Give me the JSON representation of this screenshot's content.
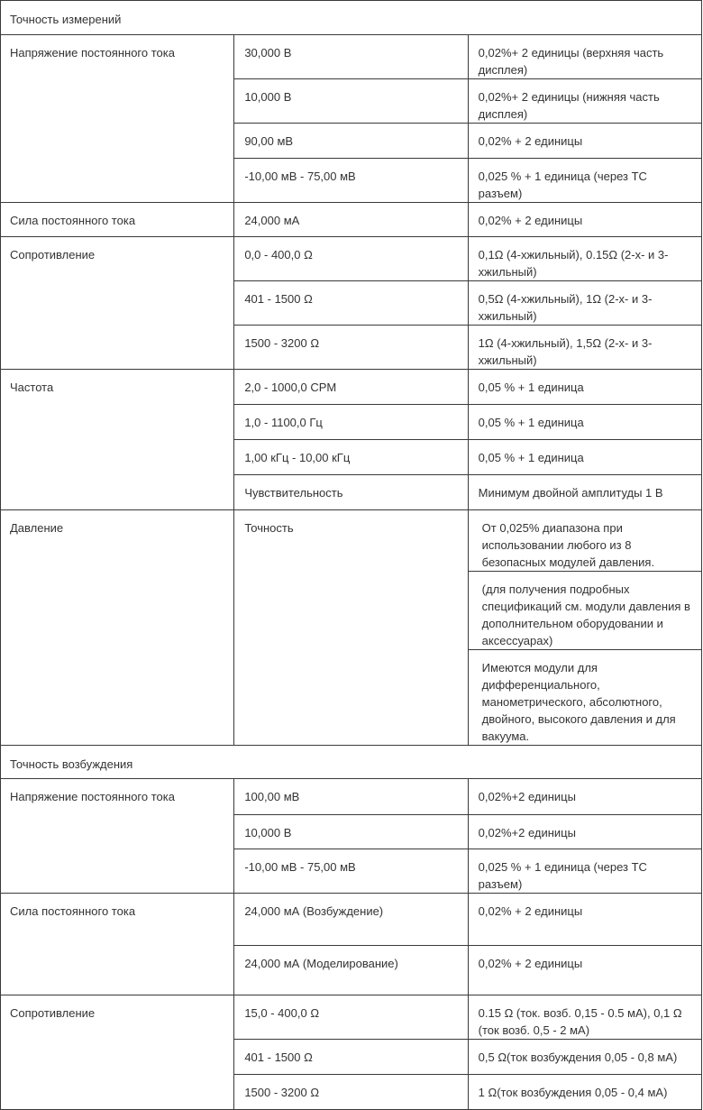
{
  "sections": [
    {
      "title": "Точность измерений",
      "groups": [
        {
          "param": "Напряжение постоянного тока",
          "rows": [
            {
              "range": "30,000 В",
              "accuracy": "0,02%+ 2 единицы (верхняя часть дисплея)"
            },
            {
              "range": "10,000 В",
              "accuracy": "0,02%+ 2 единицы (нижняя часть дисплея)"
            },
            {
              "range": "90,00 мВ",
              "accuracy": "0,02% + 2 единицы"
            },
            {
              "range": "-10,00 мВ - 75,00 мВ",
              "accuracy": "0,025 % + 1 единица (через ТС разъем)"
            }
          ]
        },
        {
          "param": "Сила постоянного тока",
          "rows": [
            {
              "range": "24,000 мА",
              "accuracy": "0,02% + 2 единицы"
            }
          ]
        },
        {
          "param": "Сопротивление",
          "rows": [
            {
              "range": "0,0 - 400,0 Ω",
              "accuracy": "0,1Ω (4-хжильный), 0.15Ω (2-х- и 3-хжильный)"
            },
            {
              "range": "401 - 1500 Ω",
              "accuracy": "0,5Ω (4-хжильный), 1Ω (2-х- и 3-хжильный)"
            },
            {
              "range": "1500 - 3200 Ω",
              "accuracy": "1Ω (4-хжильный), 1,5Ω (2-х- и 3-хжильный)"
            }
          ]
        },
        {
          "param": "Частота",
          "rows": [
            {
              "range": "2,0 - 1000,0 CPM",
              "accuracy": "0,05 % + 1 единица"
            },
            {
              "range": "1,0 - 1100,0 Гц",
              "accuracy": "0,05 % + 1 единица"
            },
            {
              "range": "1,00 кГц - 10,00 кГц",
              "accuracy": "0,05 % + 1 единица"
            },
            {
              "range": "Чувствительность",
              "accuracy": "Минимум двойной амплитуды 1 В"
            }
          ]
        },
        {
          "param": "Давление",
          "range_merged": "Точность",
          "rows": [
            {
              "accuracy": "От 0,025% диапазона при использовании любого из 8 безопасных модулей давления."
            },
            {
              "accuracy": "(для получения подробных спецификаций см. модули давления в дополнительном оборудовании и аксессуарах)"
            },
            {
              "accuracy": "Имеются модули для дифференциального, манометрического, абсолютного, двойного, высокого давления и для вакуума."
            }
          ]
        }
      ]
    },
    {
      "title": "Точность возбуждения",
      "groups": [
        {
          "param": "Напряжение постоянного тока",
          "rows": [
            {
              "range": "100,00 мВ",
              "accuracy": "0,02%+2 единицы"
            },
            {
              "range": "10,000 В",
              "accuracy": "0,02%+2 единицы"
            },
            {
              "range": "-10,00 мВ - 75,00 мВ",
              "accuracy": "0,025 % + 1 единица (через ТС разъем)"
            }
          ]
        },
        {
          "param": "Сила постоянного тока",
          "rows": [
            {
              "range": "24,000 мА (Возбуждение)",
              "accuracy": "0,02% + 2 единицы"
            },
            {
              "range": "24,000 мА (Моделирование)",
              "accuracy": "0,02% + 2 единицы"
            }
          ]
        },
        {
          "param": "Сопротивление",
          "rows": [
            {
              "range": "15,0 - 400,0 Ω",
              "accuracy": "0.15 Ω (ток. возб. 0,15 - 0.5 мА), 0,1 Ω (ток возб. 0,5 - 2 мА)"
            },
            {
              "range": "401 - 1500 Ω",
              "accuracy": "0,5 Ω(ток возбуждения 0,05 - 0,8 мА)"
            },
            {
              "range": "1500 - 3200 Ω",
              "accuracy": "1 Ω(ток возбуждения 0,05 - 0,4 мА)"
            }
          ]
        }
      ]
    }
  ]
}
